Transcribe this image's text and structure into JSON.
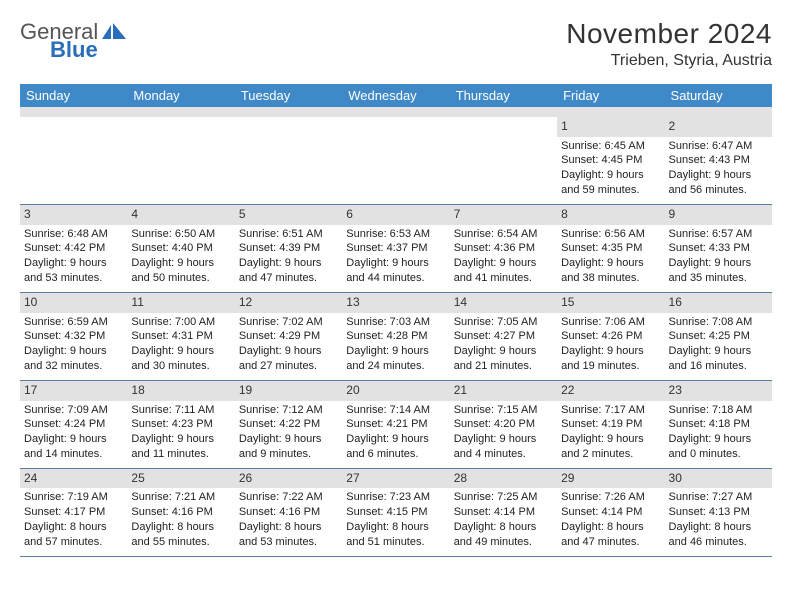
{
  "logo": {
    "word1": "General",
    "word2": "Blue"
  },
  "title": "November 2024",
  "location": "Trieben, Styria, Austria",
  "styling": {
    "header_bg": "#4089c9",
    "header_text": "#ffffff",
    "daynum_bg": "#e2e2e2",
    "border_color": "#5a7da6",
    "title_fontsize": 28,
    "location_fontsize": 16,
    "dayhead_fontsize": 13,
    "daynum_fontsize": 12,
    "details_fontsize": 11,
    "grid_cols": 7,
    "grid_rows": 5
  },
  "day_names": [
    "Sunday",
    "Monday",
    "Tuesday",
    "Wednesday",
    "Thursday",
    "Friday",
    "Saturday"
  ],
  "weeks": [
    [
      null,
      null,
      null,
      null,
      null,
      {
        "n": "1",
        "sr": "Sunrise: 6:45 AM",
        "ss": "Sunset: 4:45 PM",
        "d1": "Daylight: 9 hours",
        "d2": "and 59 minutes."
      },
      {
        "n": "2",
        "sr": "Sunrise: 6:47 AM",
        "ss": "Sunset: 4:43 PM",
        "d1": "Daylight: 9 hours",
        "d2": "and 56 minutes."
      }
    ],
    [
      {
        "n": "3",
        "sr": "Sunrise: 6:48 AM",
        "ss": "Sunset: 4:42 PM",
        "d1": "Daylight: 9 hours",
        "d2": "and 53 minutes."
      },
      {
        "n": "4",
        "sr": "Sunrise: 6:50 AM",
        "ss": "Sunset: 4:40 PM",
        "d1": "Daylight: 9 hours",
        "d2": "and 50 minutes."
      },
      {
        "n": "5",
        "sr": "Sunrise: 6:51 AM",
        "ss": "Sunset: 4:39 PM",
        "d1": "Daylight: 9 hours",
        "d2": "and 47 minutes."
      },
      {
        "n": "6",
        "sr": "Sunrise: 6:53 AM",
        "ss": "Sunset: 4:37 PM",
        "d1": "Daylight: 9 hours",
        "d2": "and 44 minutes."
      },
      {
        "n": "7",
        "sr": "Sunrise: 6:54 AM",
        "ss": "Sunset: 4:36 PM",
        "d1": "Daylight: 9 hours",
        "d2": "and 41 minutes."
      },
      {
        "n": "8",
        "sr": "Sunrise: 6:56 AM",
        "ss": "Sunset: 4:35 PM",
        "d1": "Daylight: 9 hours",
        "d2": "and 38 minutes."
      },
      {
        "n": "9",
        "sr": "Sunrise: 6:57 AM",
        "ss": "Sunset: 4:33 PM",
        "d1": "Daylight: 9 hours",
        "d2": "and 35 minutes."
      }
    ],
    [
      {
        "n": "10",
        "sr": "Sunrise: 6:59 AM",
        "ss": "Sunset: 4:32 PM",
        "d1": "Daylight: 9 hours",
        "d2": "and 32 minutes."
      },
      {
        "n": "11",
        "sr": "Sunrise: 7:00 AM",
        "ss": "Sunset: 4:31 PM",
        "d1": "Daylight: 9 hours",
        "d2": "and 30 minutes."
      },
      {
        "n": "12",
        "sr": "Sunrise: 7:02 AM",
        "ss": "Sunset: 4:29 PM",
        "d1": "Daylight: 9 hours",
        "d2": "and 27 minutes."
      },
      {
        "n": "13",
        "sr": "Sunrise: 7:03 AM",
        "ss": "Sunset: 4:28 PM",
        "d1": "Daylight: 9 hours",
        "d2": "and 24 minutes."
      },
      {
        "n": "14",
        "sr": "Sunrise: 7:05 AM",
        "ss": "Sunset: 4:27 PM",
        "d1": "Daylight: 9 hours",
        "d2": "and 21 minutes."
      },
      {
        "n": "15",
        "sr": "Sunrise: 7:06 AM",
        "ss": "Sunset: 4:26 PM",
        "d1": "Daylight: 9 hours",
        "d2": "and 19 minutes."
      },
      {
        "n": "16",
        "sr": "Sunrise: 7:08 AM",
        "ss": "Sunset: 4:25 PM",
        "d1": "Daylight: 9 hours",
        "d2": "and 16 minutes."
      }
    ],
    [
      {
        "n": "17",
        "sr": "Sunrise: 7:09 AM",
        "ss": "Sunset: 4:24 PM",
        "d1": "Daylight: 9 hours",
        "d2": "and 14 minutes."
      },
      {
        "n": "18",
        "sr": "Sunrise: 7:11 AM",
        "ss": "Sunset: 4:23 PM",
        "d1": "Daylight: 9 hours",
        "d2": "and 11 minutes."
      },
      {
        "n": "19",
        "sr": "Sunrise: 7:12 AM",
        "ss": "Sunset: 4:22 PM",
        "d1": "Daylight: 9 hours",
        "d2": "and 9 minutes."
      },
      {
        "n": "20",
        "sr": "Sunrise: 7:14 AM",
        "ss": "Sunset: 4:21 PM",
        "d1": "Daylight: 9 hours",
        "d2": "and 6 minutes."
      },
      {
        "n": "21",
        "sr": "Sunrise: 7:15 AM",
        "ss": "Sunset: 4:20 PM",
        "d1": "Daylight: 9 hours",
        "d2": "and 4 minutes."
      },
      {
        "n": "22",
        "sr": "Sunrise: 7:17 AM",
        "ss": "Sunset: 4:19 PM",
        "d1": "Daylight: 9 hours",
        "d2": "and 2 minutes."
      },
      {
        "n": "23",
        "sr": "Sunrise: 7:18 AM",
        "ss": "Sunset: 4:18 PM",
        "d1": "Daylight: 9 hours",
        "d2": "and 0 minutes."
      }
    ],
    [
      {
        "n": "24",
        "sr": "Sunrise: 7:19 AM",
        "ss": "Sunset: 4:17 PM",
        "d1": "Daylight: 8 hours",
        "d2": "and 57 minutes."
      },
      {
        "n": "25",
        "sr": "Sunrise: 7:21 AM",
        "ss": "Sunset: 4:16 PM",
        "d1": "Daylight: 8 hours",
        "d2": "and 55 minutes."
      },
      {
        "n": "26",
        "sr": "Sunrise: 7:22 AM",
        "ss": "Sunset: 4:16 PM",
        "d1": "Daylight: 8 hours",
        "d2": "and 53 minutes."
      },
      {
        "n": "27",
        "sr": "Sunrise: 7:23 AM",
        "ss": "Sunset: 4:15 PM",
        "d1": "Daylight: 8 hours",
        "d2": "and 51 minutes."
      },
      {
        "n": "28",
        "sr": "Sunrise: 7:25 AM",
        "ss": "Sunset: 4:14 PM",
        "d1": "Daylight: 8 hours",
        "d2": "and 49 minutes."
      },
      {
        "n": "29",
        "sr": "Sunrise: 7:26 AM",
        "ss": "Sunset: 4:14 PM",
        "d1": "Daylight: 8 hours",
        "d2": "and 47 minutes."
      },
      {
        "n": "30",
        "sr": "Sunrise: 7:27 AM",
        "ss": "Sunset: 4:13 PM",
        "d1": "Daylight: 8 hours",
        "d2": "and 46 minutes."
      }
    ]
  ]
}
